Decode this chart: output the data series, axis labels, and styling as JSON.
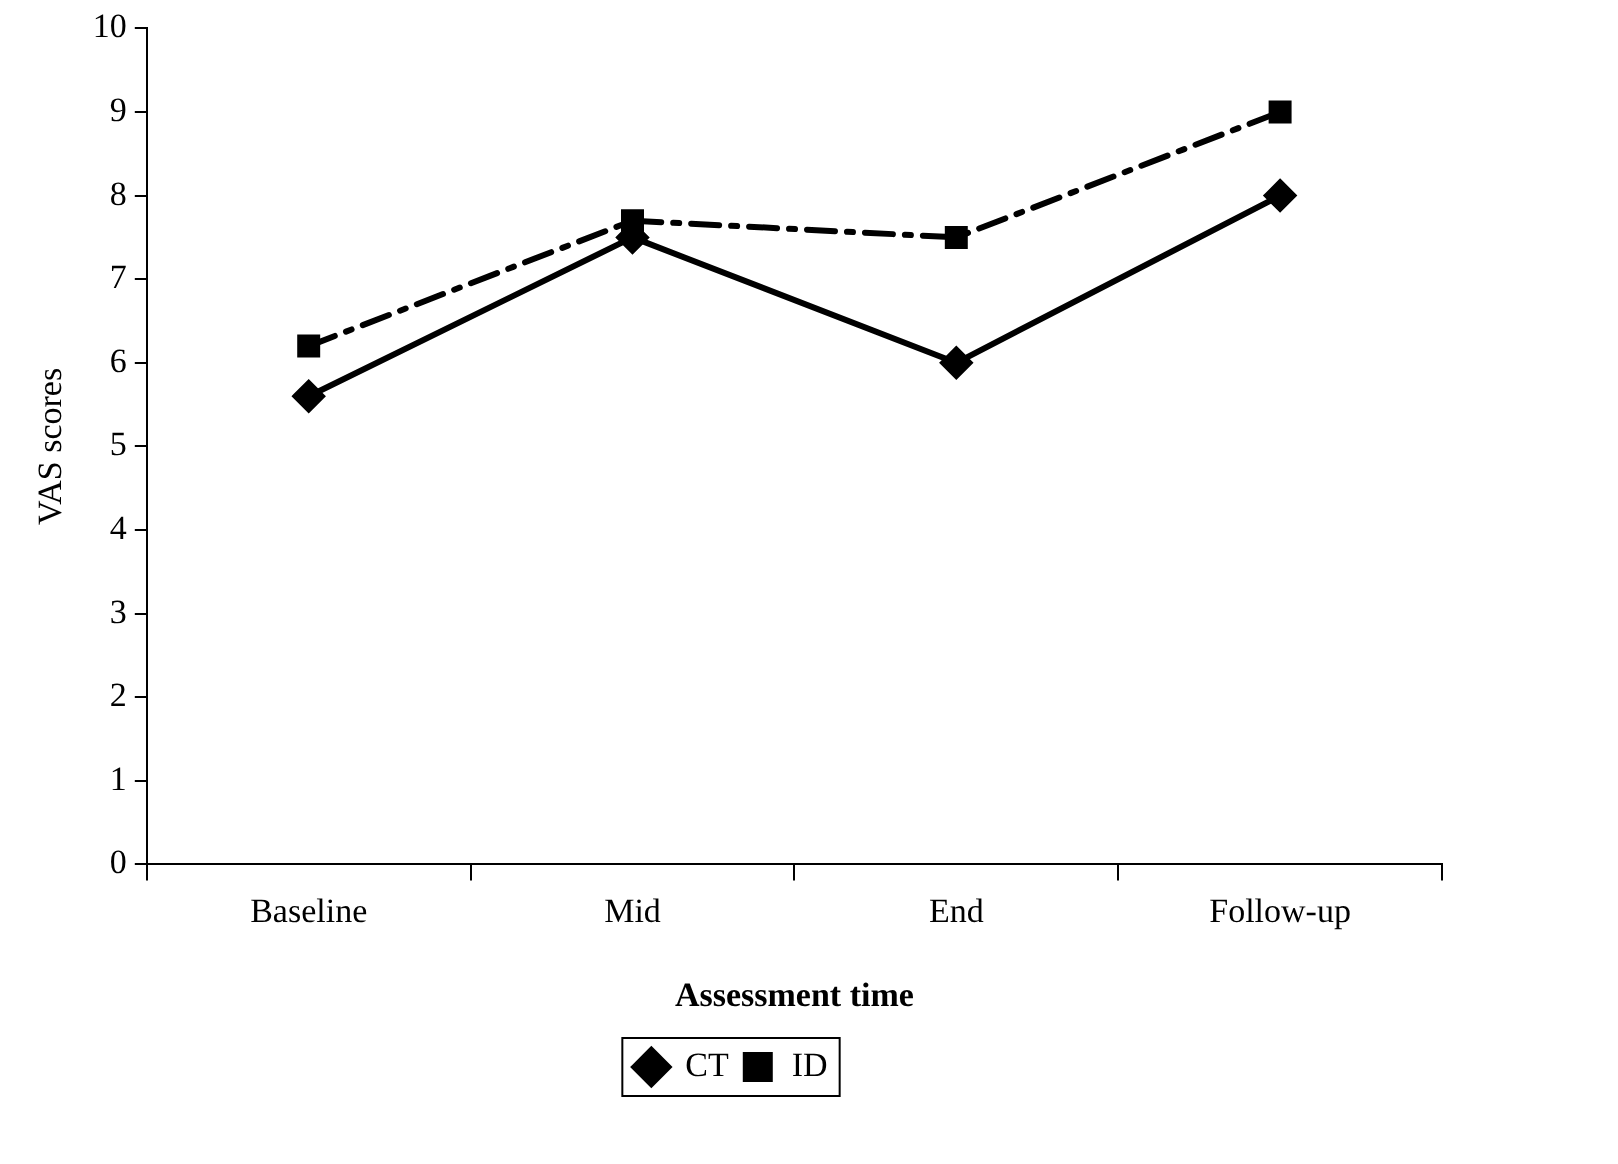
{
  "chart_data": {
    "type": "line",
    "xlabel": "Assessment time",
    "ylabel": "VAS scores",
    "categories": [
      "Baseline",
      "Mid",
      "End",
      "Follow-up"
    ],
    "series": [
      {
        "name": "CT",
        "color": "#000000",
        "values": [
          5.6,
          7.5,
          6.0,
          8.0
        ],
        "marker": "diamond",
        "line_style": "solid"
      },
      {
        "name": "ID",
        "color": "#000000",
        "values": [
          6.2,
          7.7,
          7.5,
          9.0
        ],
        "marker": "square",
        "line_style": "dashed"
      }
    ],
    "ylim": [
      0,
      10
    ],
    "yticks": [
      0,
      1,
      2,
      3,
      4,
      5,
      6,
      7,
      8,
      9,
      10
    ],
    "grid": false,
    "legend": "bottom"
  }
}
